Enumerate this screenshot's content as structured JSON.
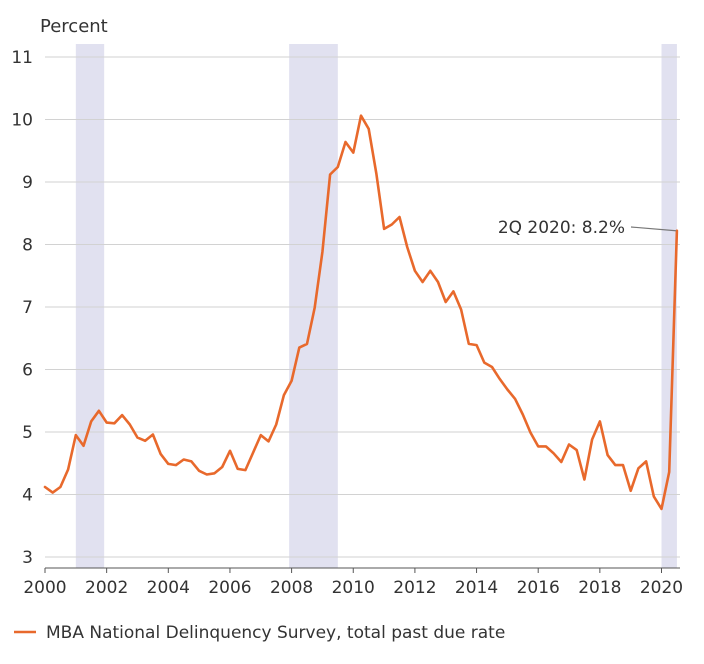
{
  "chart_data": {
    "type": "line",
    "ylabel": "Percent",
    "ylim": [
      3,
      11
    ],
    "yticks": [
      3,
      4,
      5,
      6,
      7,
      8,
      9,
      10,
      11
    ],
    "xlim": [
      2000,
      2020.6
    ],
    "xticks": [
      2000,
      2002,
      2004,
      2006,
      2008,
      2010,
      2012,
      2014,
      2016,
      2018,
      2020
    ],
    "grid": "horizontal",
    "legend_position": "bottom",
    "colors": {
      "line": "#e8692c",
      "recession": "#e1e1f0",
      "grid": "#d2d2d2",
      "axis": "#555555"
    },
    "recessions": [
      {
        "start": 2001.0,
        "end": 2001.92
      },
      {
        "start": 2007.92,
        "end": 2009.5
      },
      {
        "start": 2020.0,
        "end": 2020.5
      }
    ],
    "annotation": {
      "text": "2Q 2020: 8.2%",
      "x": 2020.5,
      "y": 8.22
    },
    "series": [
      {
        "name": "MBA National Delinquency Survey, total past due rate",
        "x": [
          2000.0,
          2000.25,
          2000.5,
          2000.75,
          2001.0,
          2001.25,
          2001.5,
          2001.75,
          2002.0,
          2002.25,
          2002.5,
          2002.75,
          2003.0,
          2003.25,
          2003.5,
          2003.75,
          2004.0,
          2004.25,
          2004.5,
          2004.75,
          2005.0,
          2005.25,
          2005.5,
          2005.75,
          2006.0,
          2006.25,
          2006.5,
          2006.75,
          2007.0,
          2007.25,
          2007.5,
          2007.75,
          2008.0,
          2008.25,
          2008.5,
          2008.75,
          2009.0,
          2009.25,
          2009.5,
          2009.75,
          2010.0,
          2010.25,
          2010.5,
          2010.75,
          2011.0,
          2011.25,
          2011.5,
          2011.75,
          2012.0,
          2012.25,
          2012.5,
          2012.75,
          2013.0,
          2013.25,
          2013.5,
          2013.75,
          2014.0,
          2014.25,
          2014.5,
          2014.75,
          2015.0,
          2015.25,
          2015.5,
          2015.75,
          2016.0,
          2016.25,
          2016.5,
          2016.75,
          2017.0,
          2017.25,
          2017.5,
          2017.75,
          2018.0,
          2018.25,
          2018.5,
          2018.75,
          2019.0,
          2019.25,
          2019.5,
          2019.75,
          2020.0,
          2020.25,
          2020.5
        ],
        "values": [
          4.12,
          4.03,
          4.12,
          4.4,
          4.95,
          4.78,
          5.17,
          5.34,
          5.15,
          5.14,
          5.27,
          5.12,
          4.91,
          4.86,
          4.96,
          4.65,
          4.49,
          4.47,
          4.56,
          4.53,
          4.38,
          4.32,
          4.34,
          4.44,
          4.7,
          4.41,
          4.39,
          4.67,
          4.95,
          4.85,
          5.12,
          5.59,
          5.82,
          6.35,
          6.41,
          6.99,
          7.88,
          9.12,
          9.24,
          9.64,
          9.47,
          10.06,
          9.85,
          9.13,
          8.25,
          8.32,
          8.44,
          7.96,
          7.58,
          7.4,
          7.58,
          7.4,
          7.08,
          7.25,
          6.96,
          6.41,
          6.39,
          6.11,
          6.04,
          5.85,
          5.68,
          5.53,
          5.28,
          4.99,
          4.77,
          4.77,
          4.66,
          4.52,
          4.8,
          4.71,
          4.24,
          4.88,
          5.17,
          4.63,
          4.47,
          4.47,
          4.06,
          4.42,
          4.53,
          3.97,
          3.77,
          4.36,
          8.22
        ]
      }
    ]
  }
}
